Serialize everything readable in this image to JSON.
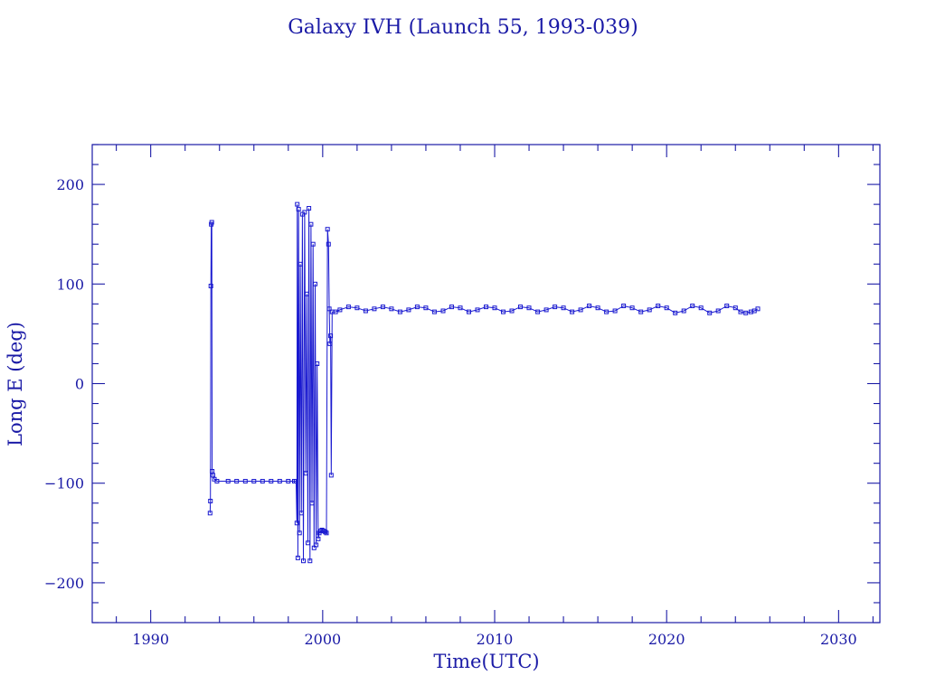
{
  "chart_data": {
    "type": "scatter",
    "title": "Galaxy IVH (Launch 55, 1993-039)",
    "xlabel": "Time(UTC)",
    "ylabel": "Long E (deg)",
    "xlim": [
      1986.6,
      2032.4
    ],
    "ylim": [
      -240,
      240
    ],
    "x_ticks": [
      1990,
      2000,
      2010,
      2020,
      2030
    ],
    "y_ticks": [
      -200,
      -100,
      0,
      100,
      200
    ],
    "x_tick_labels": [
      "1990",
      "2000",
      "2010",
      "2020",
      "2030"
    ],
    "y_tick_labels": [
      "−200",
      "−100",
      "0",
      "100",
      "200"
    ],
    "x_minor_step": 2,
    "y_minor_step": 20,
    "grid": false,
    "colors": {
      "axis": "#1a1aa6",
      "series": "#1a1ad0"
    },
    "series": [
      {
        "marker": "open-square",
        "line": true,
        "points": [
          [
            1993.45,
            -130
          ],
          [
            1993.47,
            -118
          ],
          [
            1993.5,
            98
          ],
          [
            1993.52,
            160
          ],
          [
            1993.55,
            162
          ],
          [
            1993.57,
            -88
          ],
          [
            1993.62,
            -92
          ],
          [
            1993.7,
            -96
          ],
          [
            1993.85,
            -98
          ],
          [
            1994.5,
            -98
          ],
          [
            1995.0,
            -98
          ],
          [
            1995.5,
            -98
          ],
          [
            1996.0,
            -98
          ],
          [
            1996.5,
            -98
          ],
          [
            1997.0,
            -98
          ],
          [
            1997.5,
            -98
          ],
          [
            1998.0,
            -98
          ],
          [
            1998.35,
            -98
          ],
          [
            1998.45,
            -98
          ],
          [
            1998.5,
            -140
          ],
          [
            1998.52,
            180
          ],
          [
            1998.56,
            -175
          ],
          [
            1998.6,
            175
          ],
          [
            1998.65,
            -150
          ],
          [
            1998.7,
            120
          ],
          [
            1998.76,
            -130
          ],
          [
            1998.82,
            170
          ],
          [
            1998.88,
            -178
          ],
          [
            1998.95,
            172
          ],
          [
            1999.02,
            -90
          ],
          [
            1999.08,
            90
          ],
          [
            1999.14,
            -160
          ],
          [
            1999.2,
            176
          ],
          [
            1999.26,
            -178
          ],
          [
            1999.32,
            160
          ],
          [
            1999.38,
            -120
          ],
          [
            1999.44,
            140
          ],
          [
            1999.5,
            -165
          ],
          [
            1999.56,
            100
          ],
          [
            1999.62,
            -162
          ],
          [
            1999.68,
            20
          ],
          [
            1999.74,
            -156
          ],
          [
            1999.8,
            -150
          ],
          [
            1999.88,
            -148
          ],
          [
            1999.96,
            -147
          ],
          [
            2000.05,
            -148
          ],
          [
            2000.15,
            -149
          ],
          [
            2000.22,
            -150
          ],
          [
            2000.28,
            155
          ],
          [
            2000.34,
            140
          ],
          [
            2000.38,
            75
          ],
          [
            2000.42,
            40
          ],
          [
            2000.46,
            48
          ],
          [
            2000.5,
            -92
          ],
          [
            2000.55,
            72
          ],
          [
            2000.75,
            72
          ],
          [
            2001.0,
            74
          ],
          [
            2001.5,
            77
          ],
          [
            2002.0,
            76
          ],
          [
            2002.5,
            73
          ],
          [
            2003.0,
            75
          ],
          [
            2003.5,
            77
          ],
          [
            2004.0,
            75
          ],
          [
            2004.5,
            72
          ],
          [
            2005.0,
            74
          ],
          [
            2005.5,
            77
          ],
          [
            2006.0,
            76
          ],
          [
            2006.5,
            72
          ],
          [
            2007.0,
            73
          ],
          [
            2007.5,
            77
          ],
          [
            2008.0,
            76
          ],
          [
            2008.5,
            72
          ],
          [
            2009.0,
            74
          ],
          [
            2009.5,
            77
          ],
          [
            2010.0,
            76
          ],
          [
            2010.5,
            72
          ],
          [
            2011.0,
            73
          ],
          [
            2011.5,
            77
          ],
          [
            2012.0,
            76
          ],
          [
            2012.5,
            72
          ],
          [
            2013.0,
            74
          ],
          [
            2013.5,
            77
          ],
          [
            2014.0,
            76
          ],
          [
            2014.5,
            72
          ],
          [
            2015.0,
            74
          ],
          [
            2015.5,
            78
          ],
          [
            2016.0,
            76
          ],
          [
            2016.5,
            72
          ],
          [
            2017.0,
            73
          ],
          [
            2017.5,
            78
          ],
          [
            2018.0,
            76
          ],
          [
            2018.5,
            72
          ],
          [
            2019.0,
            74
          ],
          [
            2019.5,
            78
          ],
          [
            2020.0,
            76
          ],
          [
            2020.5,
            71
          ],
          [
            2021.0,
            73
          ],
          [
            2021.5,
            78
          ],
          [
            2022.0,
            76
          ],
          [
            2022.5,
            71
          ],
          [
            2023.0,
            73
          ],
          [
            2023.5,
            78
          ],
          [
            2024.0,
            76
          ],
          [
            2024.3,
            72
          ],
          [
            2024.6,
            71
          ],
          [
            2024.9,
            72
          ],
          [
            2025.1,
            73
          ],
          [
            2025.3,
            75
          ]
        ]
      }
    ]
  }
}
